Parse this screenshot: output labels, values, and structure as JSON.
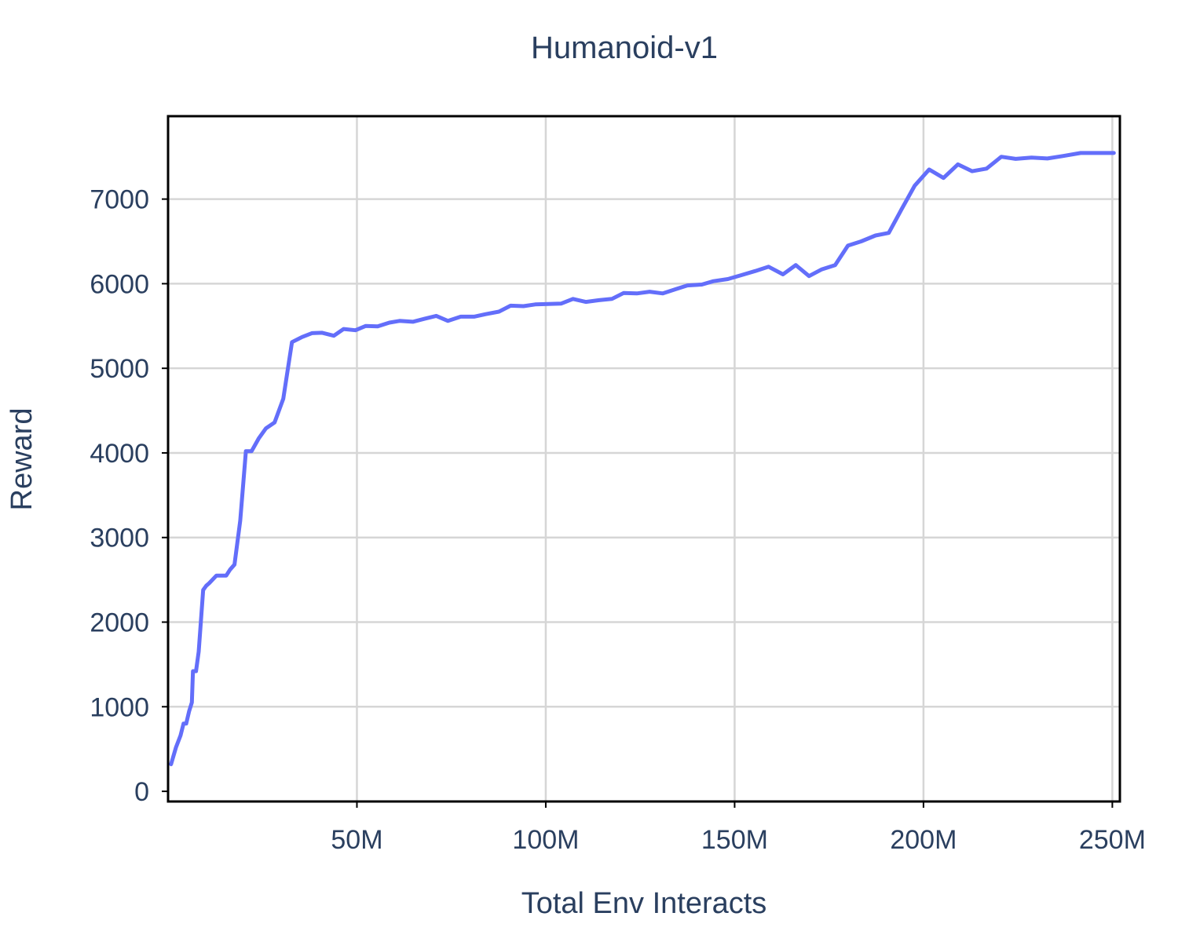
{
  "chart_data": {
    "type": "line",
    "title": "Humanoid-v1",
    "xlabel": "Total Env Interacts",
    "ylabel": "Reward",
    "xlim": [
      0,
      252000000
    ],
    "ylim": [
      -120,
      7980
    ],
    "xticks": [
      {
        "value": 50000000,
        "label": "50M"
      },
      {
        "value": 100000000,
        "label": "100M"
      },
      {
        "value": 150000000,
        "label": "150M"
      },
      {
        "value": 200000000,
        "label": "200M"
      },
      {
        "value": 250000000,
        "label": "250M"
      }
    ],
    "yticks": [
      {
        "value": 0,
        "label": "0"
      },
      {
        "value": 1000,
        "label": "1000"
      },
      {
        "value": 2000,
        "label": "2000"
      },
      {
        "value": 3000,
        "label": "3000"
      },
      {
        "value": 4000,
        "label": "4000"
      },
      {
        "value": 5000,
        "label": "5000"
      },
      {
        "value": 6000,
        "label": "6000"
      },
      {
        "value": 7000,
        "label": "7000"
      }
    ],
    "grid": true,
    "legend": "none",
    "series": [
      {
        "color": "#636efa",
        "x": [
          0.8,
          2.1,
          3.3,
          4.1,
          4.8,
          5.6,
          6.3,
          6.6,
          7.4,
          8.1,
          9.3,
          10.1,
          10.9,
          12.8,
          14.3,
          15.4,
          16.4,
          17.6,
          19.1,
          20.6,
          22.1,
          24.0,
          25.9,
          28.2,
          30.5,
          32.8,
          35.5,
          38.1,
          40.8,
          43.9,
          46.5,
          49.6,
          52.3,
          55.5,
          58.6,
          61.3,
          64.8,
          67.9,
          71.0,
          74.1,
          77.5,
          81.0,
          84.1,
          87.6,
          90.7,
          94.1,
          97.2,
          100.6,
          104.1,
          107.2,
          110.6,
          114.1,
          117.5,
          120.6,
          124.1,
          127.5,
          131.0,
          134.4,
          137.5,
          141.3,
          144.4,
          148.2,
          151.7,
          155.5,
          159.0,
          162.8,
          166.2,
          169.7,
          173.1,
          176.6,
          180.0,
          183.5,
          187.3,
          190.8,
          194.2,
          197.7,
          201.5,
          205.3,
          209.1,
          212.9,
          216.7,
          220.6,
          224.4,
          228.6,
          232.8,
          237.0,
          241.6,
          246.2,
          250.4
        ],
        "y": [
          320,
          520,
          660,
          800,
          800,
          950,
          1050,
          1420,
          1420,
          1650,
          2380,
          2430,
          2460,
          2550,
          2550,
          2550,
          2620,
          2680,
          3200,
          4020,
          4020,
          4170,
          4290,
          4360,
          4640,
          5310,
          5370,
          5415,
          5420,
          5385,
          5465,
          5450,
          5500,
          5495,
          5540,
          5560,
          5550,
          5585,
          5620,
          5560,
          5610,
          5610,
          5640,
          5670,
          5740,
          5735,
          5755,
          5760,
          5765,
          5820,
          5785,
          5805,
          5820,
          5890,
          5885,
          5905,
          5885,
          5935,
          5980,
          5990,
          6030,
          6055,
          6100,
          6150,
          6200,
          6110,
          6220,
          6090,
          6170,
          6220,
          6450,
          6500,
          6570,
          6600,
          6880,
          7160,
          7350,
          7250,
          7410,
          7330,
          7360,
          7500,
          7475,
          7490,
          7480,
          7510,
          7545,
          7545,
          7545
        ]
      }
    ]
  }
}
